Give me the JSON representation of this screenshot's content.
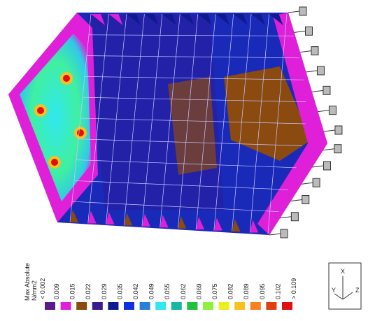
{
  "legend": {
    "title": [
      "Max Absolute",
      "N/mm2"
    ],
    "min_label": "< 0.002",
    "max_label": "> 0.109",
    "levels": [
      {
        "label": "0.009",
        "color": "#5a1c8c"
      },
      {
        "label": "0.015",
        "color": "#e020d8"
      },
      {
        "label": "0.022",
        "color": "#8a4a10"
      },
      {
        "label": "0.029",
        "color": "#3a1a90"
      },
      {
        "label": "0.035",
        "color": "#101a90"
      },
      {
        "label": "0.042",
        "color": "#1030e0"
      },
      {
        "label": "0.049",
        "color": "#2a80d8"
      },
      {
        "label": "0.055",
        "color": "#30e8f0"
      },
      {
        "label": "0.062",
        "color": "#18b8a0"
      },
      {
        "label": "0.069",
        "color": "#20c040"
      },
      {
        "label": "0.075",
        "color": "#90f040"
      },
      {
        "label": "0.082",
        "color": "#e8f020"
      },
      {
        "label": "0.089",
        "color": "#f8c020"
      },
      {
        "label": "0.095",
        "color": "#f88020"
      },
      {
        "label": "0.102",
        "color": "#e04010"
      },
      {
        "label": "0.109",
        "color": "#e01010"
      }
    ]
  },
  "triad": {
    "x": "X",
    "y": "Y",
    "z": "Z"
  }
}
